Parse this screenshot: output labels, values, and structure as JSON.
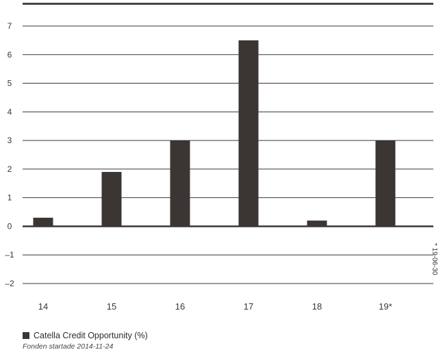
{
  "chart_data": {
    "type": "bar",
    "categories": [
      "14",
      "15",
      "16",
      "17",
      "18",
      "19*"
    ],
    "series": [
      {
        "name": "Catella Credit Opportunity (%)",
        "values": [
          0.3,
          1.9,
          3.0,
          6.5,
          0.2,
          3.0
        ]
      }
    ],
    "yticks": [
      "7",
      "6",
      "5",
      "4",
      "3",
      "2",
      "1",
      "0",
      "–1",
      "–2"
    ],
    "ylim": [
      -2,
      7
    ],
    "grid": true,
    "legend_position": "bottom-left",
    "bar_color": "#3b3633",
    "grid_color": "#3b3633",
    "footnote": "* 19-06-30",
    "note": "Fonden startade 2014-11-24"
  }
}
